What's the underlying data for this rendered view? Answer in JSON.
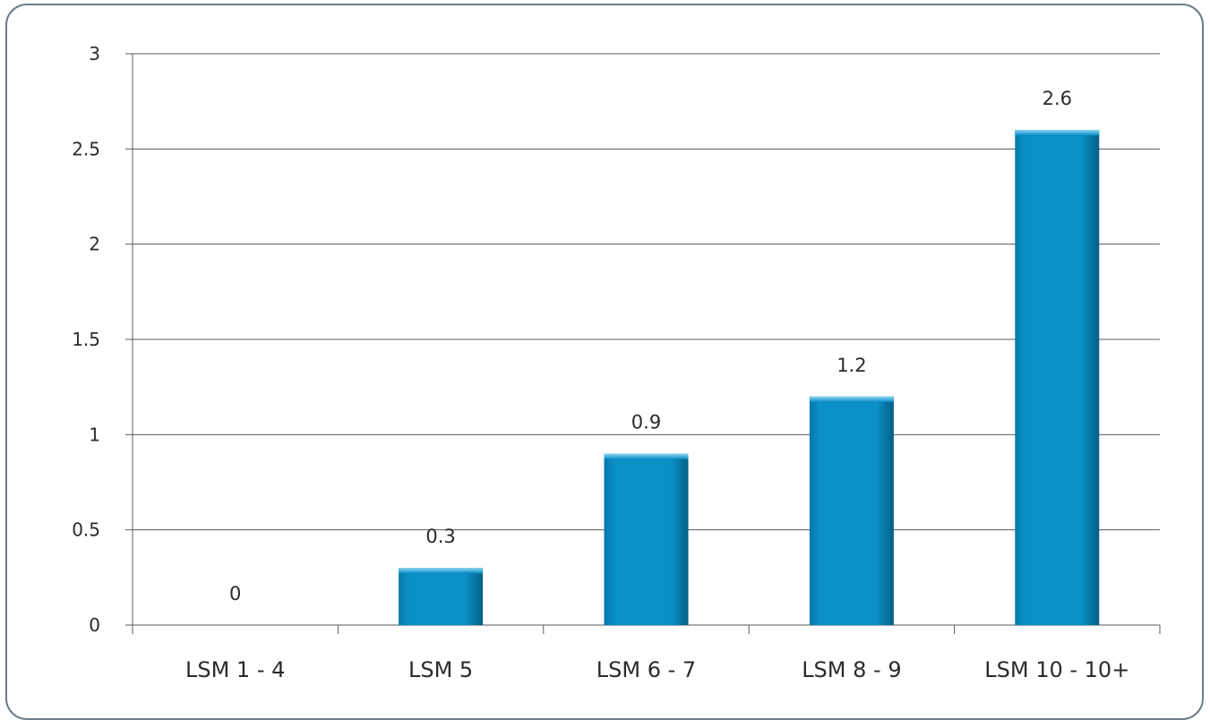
{
  "chart_data": {
    "type": "bar",
    "title": "",
    "xlabel": "",
    "ylabel": "",
    "categories": [
      "LSM 1 - 4",
      "LSM 5",
      "LSM 6 - 7",
      "LSM 8 - 9",
      "LSM 10 - 10+"
    ],
    "values": [
      0,
      0.3,
      0.9,
      1.2,
      2.6
    ],
    "data_labels": [
      "0",
      "0.3",
      "0.9",
      "1.2",
      "2.6"
    ],
    "ylim": [
      0,
      3
    ],
    "yticks": [
      0,
      0.5,
      1,
      1.5,
      2,
      2.5,
      3
    ],
    "ytick_labels": [
      "0",
      "0.5",
      "1",
      "1.5",
      "2",
      "2.5",
      "3"
    ],
    "grid": true,
    "legend": "none",
    "colors": {
      "bar": "#0a8fc6",
      "bar_dark": "#04688f",
      "bar_light": "#6cc8ec",
      "grid": "#5a5a5a",
      "frame": "#6f7c89"
    }
  }
}
